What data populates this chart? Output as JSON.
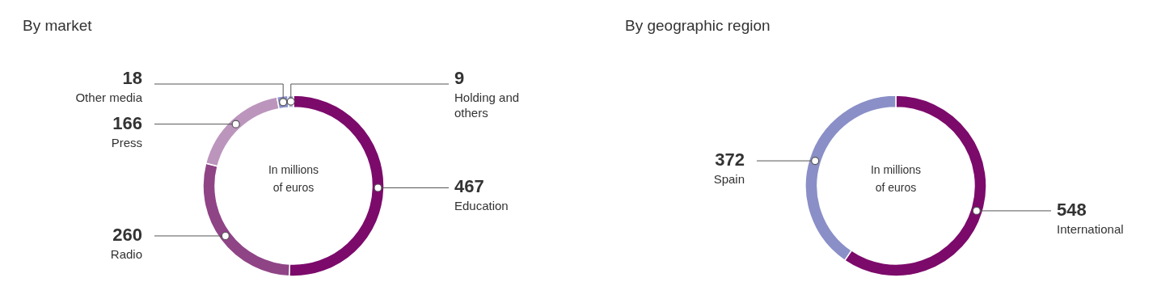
{
  "chart_data": [
    {
      "type": "donut",
      "title": "By market",
      "categories": [
        "Education",
        "Radio",
        "Press",
        "Other media",
        "Holding and others"
      ],
      "values": [
        467,
        260,
        166,
        18,
        9
      ],
      "colors": [
        "#7c0a6b",
        "#8f4486",
        "#bc95bd",
        "#8a8fc7",
        "#b9bbe0"
      ],
      "data_labels": true,
      "annotations": [
        "In millions of euros"
      ]
    },
    {
      "type": "donut",
      "title": "By geographic region",
      "categories": [
        "International",
        "Spain"
      ],
      "values": [
        548,
        372
      ],
      "colors": [
        "#7c0a6b",
        "#8a8fc7"
      ],
      "data_labels": true,
      "annotations": [
        "In millions of euros"
      ]
    }
  ]
}
